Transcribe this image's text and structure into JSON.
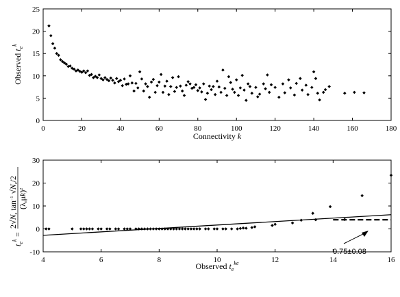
{
  "chart_data": [
    {
      "type": "scatter",
      "xlabel": "Connectivity k",
      "ylabel": "Observed t_e^k",
      "xlim": [
        0,
        180
      ],
      "ylim": [
        0,
        25
      ],
      "xticks": [
        "0",
        "20",
        "40",
        "60",
        "80",
        "100",
        "120",
        "140",
        "160",
        "180"
      ],
      "yticks": [
        "0",
        "5",
        "10",
        "15",
        "20",
        "25"
      ],
      "grid": false,
      "points": [
        [
          3,
          21.2
        ],
        [
          4,
          19.0
        ],
        [
          5,
          17.2
        ],
        [
          6,
          16.2
        ],
        [
          7,
          15.0
        ],
        [
          8,
          14.6
        ],
        [
          9,
          13.6
        ],
        [
          10,
          13.2
        ],
        [
          11,
          12.9
        ],
        [
          12,
          12.6
        ],
        [
          13,
          12.1
        ],
        [
          14,
          12.2
        ],
        [
          15,
          11.7
        ],
        [
          16,
          11.5
        ],
        [
          17,
          11.1
        ],
        [
          18,
          11.3
        ],
        [
          19,
          11.0
        ],
        [
          20,
          10.8
        ],
        [
          21,
          11.1
        ],
        [
          22,
          10.7
        ],
        [
          23,
          11.1
        ],
        [
          24,
          10.1
        ],
        [
          25,
          10.3
        ],
        [
          26,
          9.6
        ],
        [
          27,
          9.9
        ],
        [
          28,
          9.6
        ],
        [
          29,
          10.2
        ],
        [
          30,
          9.4
        ],
        [
          31,
          9.1
        ],
        [
          32,
          9.6
        ],
        [
          33,
          9.2
        ],
        [
          34,
          8.9
        ],
        [
          35,
          9.5
        ],
        [
          36,
          9.0
        ],
        [
          37,
          8.4
        ],
        [
          38,
          9.4
        ],
        [
          39,
          8.7
        ],
        [
          40,
          9.0
        ],
        [
          41,
          7.8
        ],
        [
          42,
          9.3
        ],
        [
          43,
          8.1
        ],
        [
          44,
          8.2
        ],
        [
          45,
          10.0
        ],
        [
          46,
          8.4
        ],
        [
          47,
          6.6
        ],
        [
          48,
          8.3
        ],
        [
          49,
          7.3
        ],
        [
          50,
          10.9
        ],
        [
          51,
          9.3
        ],
        [
          52,
          6.6
        ],
        [
          53,
          8.2
        ],
        [
          54,
          7.6
        ],
        [
          55,
          5.2
        ],
        [
          56,
          8.6
        ],
        [
          57,
          9.2
        ],
        [
          58,
          6.3
        ],
        [
          59,
          7.8
        ],
        [
          60,
          8.6
        ],
        [
          61,
          10.3
        ],
        [
          62,
          6.3
        ],
        [
          63,
          7.7
        ],
        [
          64,
          8.8
        ],
        [
          65,
          5.8
        ],
        [
          66,
          7.6
        ],
        [
          67,
          9.6
        ],
        [
          68,
          6.5
        ],
        [
          69,
          7.4
        ],
        [
          70,
          9.8
        ],
        [
          71,
          7.7
        ],
        [
          72,
          6.6
        ],
        [
          73,
          5.6
        ],
        [
          74,
          7.9
        ],
        [
          75,
          8.7
        ],
        [
          76,
          8.2
        ],
        [
          77,
          7.2
        ],
        [
          78,
          7.4
        ],
        [
          79,
          8.0
        ],
        [
          80,
          6.7
        ],
        [
          81,
          7.3
        ],
        [
          82,
          6.4
        ],
        [
          83,
          8.2
        ],
        [
          84,
          4.7
        ],
        [
          85,
          6.1
        ],
        [
          86,
          7.7
        ],
        [
          87,
          6.9
        ],
        [
          88,
          7.6
        ],
        [
          89,
          5.8
        ],
        [
          90,
          8.8
        ],
        [
          91,
          7.5
        ],
        [
          92,
          6.3
        ],
        [
          93,
          11.3
        ],
        [
          94,
          7.2
        ],
        [
          95,
          5.6
        ],
        [
          96,
          9.8
        ],
        [
          97,
          8.5
        ],
        [
          98,
          7.0
        ],
        [
          99,
          6.3
        ],
        [
          100,
          9.1
        ],
        [
          101,
          5.6
        ],
        [
          102,
          7.3
        ],
        [
          103,
          10.1
        ],
        [
          104,
          6.8
        ],
        [
          105,
          4.5
        ],
        [
          106,
          8.2
        ],
        [
          107,
          7.6
        ],
        [
          108,
          6.1
        ],
        [
          110,
          7.4
        ],
        [
          111,
          5.3
        ],
        [
          112,
          5.9
        ],
        [
          114,
          8.2
        ],
        [
          115,
          7.1
        ],
        [
          116,
          10.2
        ],
        [
          117,
          6.3
        ],
        [
          118,
          8.0
        ],
        [
          120,
          7.4
        ],
        [
          122,
          5.2
        ],
        [
          124,
          8.2
        ],
        [
          125,
          6.2
        ],
        [
          127,
          9.1
        ],
        [
          128,
          7.3
        ],
        [
          130,
          5.7
        ],
        [
          131,
          8.3
        ],
        [
          133,
          9.4
        ],
        [
          134,
          6.8
        ],
        [
          136,
          7.9
        ],
        [
          137,
          5.8
        ],
        [
          139,
          7.4
        ],
        [
          140,
          10.9
        ],
        [
          141,
          9.4
        ],
        [
          142,
          6.1
        ],
        [
          143,
          4.6
        ],
        [
          145,
          6.3
        ],
        [
          146,
          6.9
        ],
        [
          148,
          7.6
        ],
        [
          156,
          6.1
        ],
        [
          161,
          6.3
        ],
        [
          166,
          6.2
        ]
      ]
    },
    {
      "type": "scatter",
      "xlabel": "Observed t_e^{ke}",
      "ylabel": "t_e^k = 2√N_e tan^{-1}√(N_e/2) / (λ_e μ k)^2",
      "xlim": [
        4,
        16
      ],
      "ylim": [
        -10,
        30
      ],
      "xticks": [
        "4",
        "6",
        "8",
        "10",
        "12",
        "14",
        "16"
      ],
      "yticks": [
        "-10",
        "0",
        "10",
        "20",
        "30"
      ],
      "grid": false,
      "points": [
        [
          4.1,
          0.0
        ],
        [
          4.2,
          0.0
        ],
        [
          5.0,
          0.0
        ],
        [
          5.3,
          0.0
        ],
        [
          5.4,
          0.0
        ],
        [
          5.5,
          0.0
        ],
        [
          5.6,
          0.0
        ],
        [
          5.7,
          0.0
        ],
        [
          5.9,
          0.0
        ],
        [
          6.0,
          0.0
        ],
        [
          6.2,
          0.0
        ],
        [
          6.3,
          0.0
        ],
        [
          6.5,
          0.0
        ],
        [
          6.6,
          0.0
        ],
        [
          6.8,
          0.0
        ],
        [
          6.9,
          0.0
        ],
        [
          7.0,
          0.0
        ],
        [
          7.2,
          0.0
        ],
        [
          7.3,
          0.0
        ],
        [
          7.4,
          0.0
        ],
        [
          7.5,
          0.0
        ],
        [
          7.6,
          0.0
        ],
        [
          7.7,
          0.0
        ],
        [
          7.8,
          0.0
        ],
        [
          7.9,
          0.0
        ],
        [
          8.0,
          0.0
        ],
        [
          8.1,
          0.0
        ],
        [
          8.2,
          0.0
        ],
        [
          8.3,
          0.0
        ],
        [
          8.4,
          0.0
        ],
        [
          8.5,
          0.0
        ],
        [
          8.6,
          0.0
        ],
        [
          8.7,
          0.0
        ],
        [
          8.8,
          0.0
        ],
        [
          8.9,
          0.0
        ],
        [
          9.0,
          0.0
        ],
        [
          9.1,
          0.0
        ],
        [
          9.2,
          0.0
        ],
        [
          9.3,
          0.0
        ],
        [
          9.4,
          0.0
        ],
        [
          9.6,
          0.0
        ],
        [
          9.7,
          0.0
        ],
        [
          9.9,
          0.0
        ],
        [
          10.0,
          0.0
        ],
        [
          10.2,
          0.0
        ],
        [
          10.3,
          0.0
        ],
        [
          10.5,
          0.0
        ],
        [
          10.7,
          0.0
        ],
        [
          10.8,
          0.2
        ],
        [
          10.9,
          0.4
        ],
        [
          11.0,
          0.3
        ],
        [
          11.2,
          0.6
        ],
        [
          11.3,
          0.9
        ],
        [
          11.9,
          1.5
        ],
        [
          12.0,
          2.0
        ],
        [
          12.6,
          2.6
        ],
        [
          12.9,
          3.8
        ],
        [
          13.3,
          6.8
        ],
        [
          13.4,
          4.0
        ],
        [
          13.9,
          9.7
        ],
        [
          14.4,
          4.1
        ],
        [
          15.0,
          14.5
        ],
        [
          16.0,
          23.4
        ]
      ],
      "fit_line": {
        "x": [
          4,
          16
        ],
        "y": [
          -2.8,
          6.2
        ]
      },
      "reference_line": {
        "x": [
          14,
          16
        ],
        "y": [
          4.0,
          4.0
        ]
      },
      "annotation": "0.75±0.08"
    }
  ]
}
